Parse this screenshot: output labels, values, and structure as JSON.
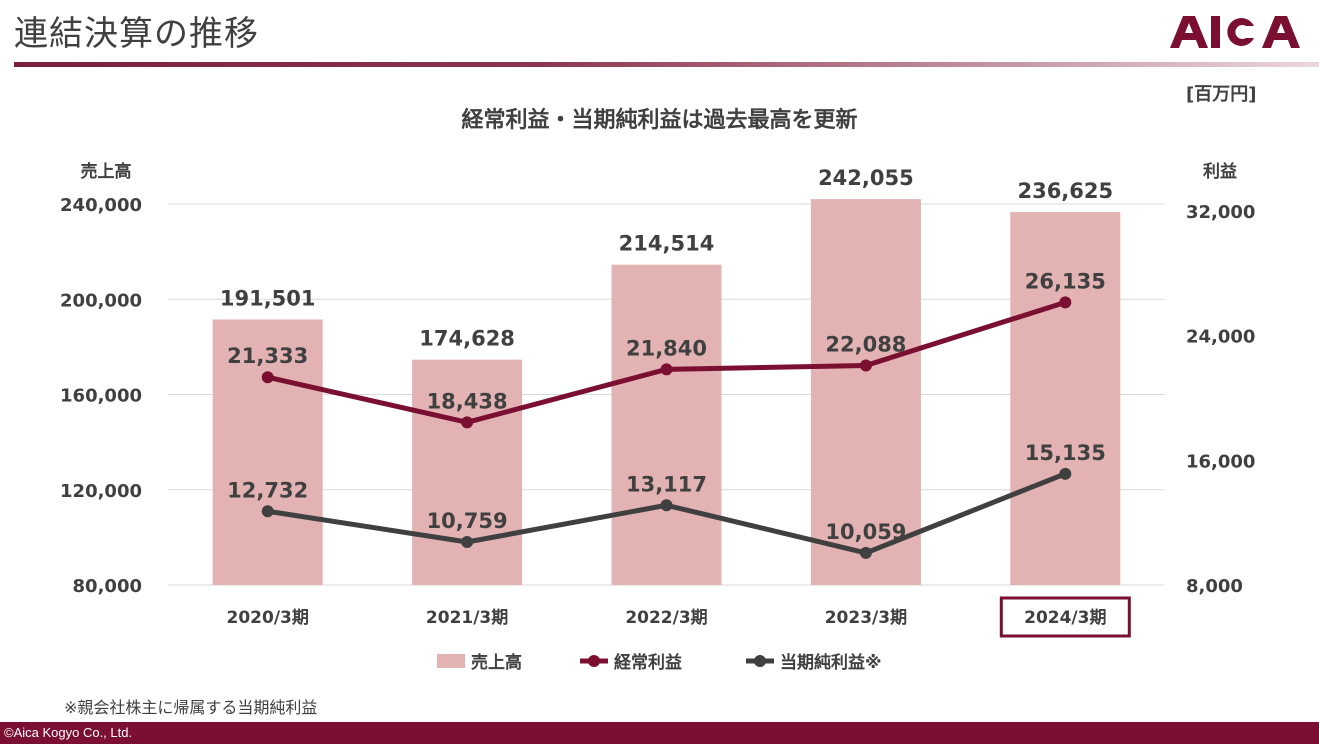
{
  "header": {
    "title": "連結決算の推移",
    "logo_text": "AICA"
  },
  "unit": "[百万円]",
  "footnote": "※親会社株主に帰属する当期純利益",
  "copyright": "©Aica Kogyo Co., Ltd.",
  "colors": {
    "brand": "#7a0f32",
    "bar": "#e3b3b3",
    "ordinary_profit": "#7a0f32",
    "net_profit": "#404040",
    "grid": "#d9d9d9",
    "highlight_box": "#7a0f32"
  },
  "chart_data": {
    "type": "bar",
    "title": "経常利益・当期純利益は過去最高を更新",
    "categories": [
      "2020/3期",
      "2021/3期",
      "2022/3期",
      "2023/3期",
      "2024/3期"
    ],
    "highlight_category": "2024/3期",
    "ylabel_left": "売上高",
    "ylabel_right": "利益",
    "ylim_left": [
      80000,
      240000
    ],
    "yticks_left": [
      "80,000",
      "120,000",
      "160,000",
      "200,000",
      "240,000"
    ],
    "ylim_right": [
      8000,
      32000
    ],
    "yticks_right": [
      "8,000",
      "16,000",
      "24,000",
      "32,000"
    ],
    "grid": true,
    "legend_position": "bottom",
    "series": [
      {
        "name": "売上高",
        "type": "bar",
        "axis": "left",
        "values": [
          191501,
          174628,
          214514,
          242055,
          236625
        ],
        "labels": [
          "191,501",
          "174,628",
          "214,514",
          "242,055",
          "236,625"
        ]
      },
      {
        "name": "経常利益",
        "type": "line",
        "axis": "right",
        "values": [
          21333,
          18438,
          21840,
          22088,
          26135
        ],
        "labels": [
          "21,333",
          "18,438",
          "21,840",
          "22,088",
          "26,135"
        ]
      },
      {
        "name": "当期純利益※",
        "type": "line",
        "axis": "right",
        "values": [
          12732,
          10759,
          13117,
          10059,
          15135
        ],
        "labels": [
          "12,732",
          "10,759",
          "13,117",
          "10,059",
          "15,135"
        ]
      }
    ]
  }
}
